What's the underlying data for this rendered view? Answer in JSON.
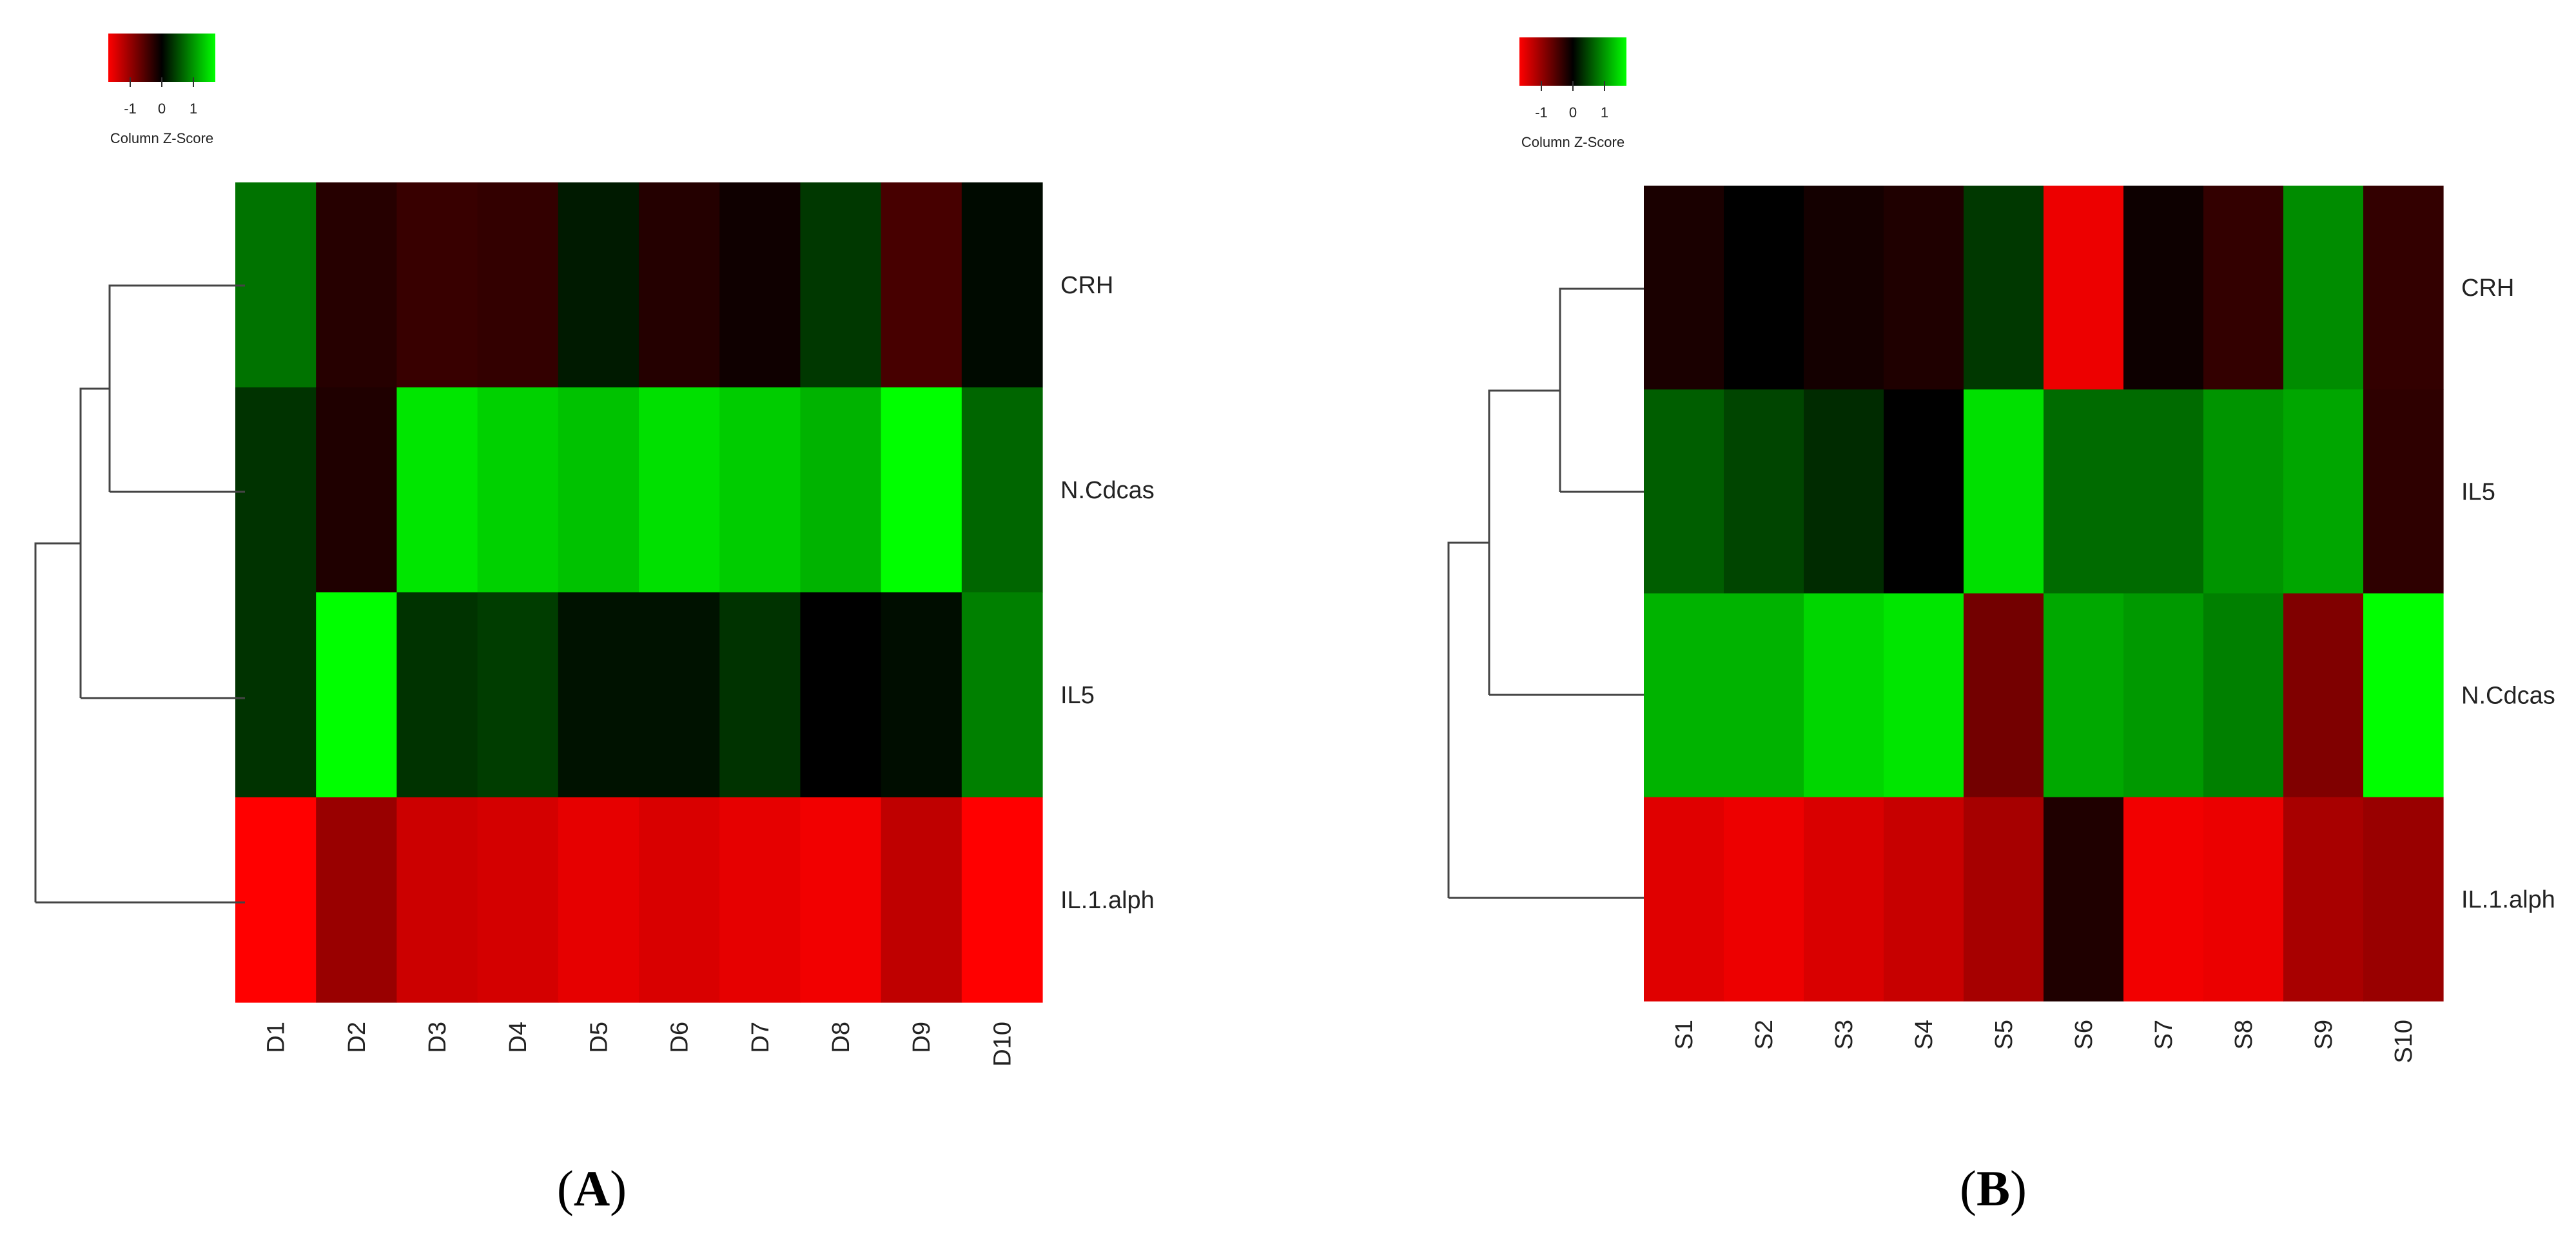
{
  "chart_data": [
    {
      "type": "heatmap",
      "panel_label": "(A)",
      "color_key": {
        "title": "Column Z-Score",
        "ticks": [
          "-1",
          "0",
          "1"
        ],
        "low_color": "#ff0000",
        "mid_color": "#000000",
        "high_color": "#00ff00"
      },
      "rows": [
        "CRH",
        "N.Cdcas",
        "IL5",
        "IL.1.alph"
      ],
      "columns": [
        "D1",
        "D2",
        "D3",
        "D4",
        "D5",
        "D6",
        "D7",
        "D8",
        "D9",
        "D10"
      ],
      "values": [
        [
          0.45,
          -0.15,
          -0.22,
          -0.2,
          0.1,
          -0.14,
          -0.06,
          0.22,
          -0.28,
          0.04
        ],
        [
          0.2,
          -0.12,
          0.9,
          0.82,
          0.76,
          0.88,
          0.8,
          0.7,
          1.0,
          0.4
        ],
        [
          0.2,
          1.0,
          0.2,
          0.24,
          0.07,
          0.07,
          0.2,
          0.0,
          0.05,
          0.5
        ],
        [
          -1.0,
          -0.6,
          -0.8,
          -0.83,
          -0.9,
          -0.85,
          -0.9,
          -0.95,
          -0.75,
          -1.0
        ]
      ]
    },
    {
      "type": "heatmap",
      "panel_label": "(B)",
      "color_key": {
        "title": "Column Z-Score",
        "ticks": [
          "-1",
          "0",
          "1"
        ],
        "low_color": "#ff0000",
        "mid_color": "#000000",
        "high_color": "#00ff00"
      },
      "rows": [
        "CRH",
        "IL5",
        "N.Cdcas",
        "IL.1.alph"
      ],
      "columns": [
        "S1",
        "S2",
        "S3",
        "S4",
        "S5",
        "S6",
        "S7",
        "S8",
        "S9",
        "S10"
      ],
      "values": [
        [
          -0.1,
          0.0,
          -0.08,
          -0.12,
          0.22,
          -0.93,
          -0.05,
          -0.2,
          0.55,
          -0.2
        ],
        [
          0.37,
          0.27,
          0.17,
          0.0,
          0.88,
          0.42,
          0.42,
          0.58,
          0.65,
          -0.18
        ],
        [
          0.7,
          0.7,
          0.84,
          0.9,
          -0.45,
          0.66,
          0.6,
          0.5,
          -0.5,
          1.0
        ],
        [
          -0.88,
          -0.93,
          -0.85,
          -0.78,
          -0.65,
          -0.12,
          -0.95,
          -0.92,
          -0.66,
          -0.6
        ]
      ]
    }
  ]
}
